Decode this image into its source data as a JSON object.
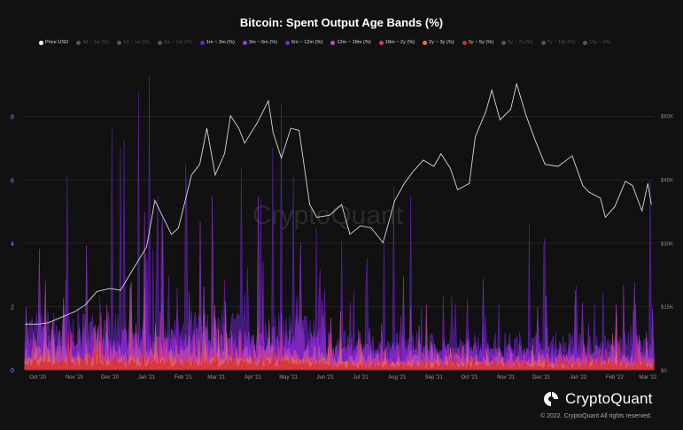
{
  "colors": {
    "background": "#111111",
    "price_line": "#d8d8d8",
    "grid": "#2e2e2e",
    "band_1m_3m": "#6b24c9",
    "band_3m_6m": "#9a3be0",
    "band_6m_12m": "#8b1fd6",
    "band_12m_18m": "#c24fae",
    "band_18m_2y": "#d8367a",
    "band_2y_3y": "#e96a55",
    "band_3y_5y": "#d42b2b"
  },
  "brand": {
    "name": "CryptoQuant",
    "logo_icon": "cryptoquant-logo-icon"
  },
  "copyright": "© 2022. CryptoQuant All rights reserved.",
  "watermark": "CryptoQuant",
  "chart_data": {
    "type": "area",
    "title": "Bitcoin: Spent Output Age Bands (%)",
    "legend_position": "top",
    "legend": [
      {
        "name": "Price USD",
        "active": true,
        "color": "#ffffff"
      },
      {
        "name": "3d ~ 1w (%)",
        "active": false,
        "color": "#555555"
      },
      {
        "name": "1d ~ 1w (%)",
        "active": false,
        "color": "#555555"
      },
      {
        "name": "1w ~ 1m (%)",
        "active": false,
        "color": "#555555"
      },
      {
        "name": "1m ~ 3m (%)",
        "active": true,
        "color": "#6b24c9"
      },
      {
        "name": "3m ~ 6m (%)",
        "active": true,
        "color": "#9a3be0"
      },
      {
        "name": "6m ~ 12m (%)",
        "active": true,
        "color": "#8b1fd6"
      },
      {
        "name": "12m ~ 18m (%)",
        "active": true,
        "color": "#c24fae"
      },
      {
        "name": "18m ~ 2y (%)",
        "active": true,
        "color": "#d8367a"
      },
      {
        "name": "2y ~ 3y (%)",
        "active": true,
        "color": "#e96a55"
      },
      {
        "name": "3y ~ 5y (%)",
        "active": true,
        "color": "#d42b2b"
      },
      {
        "name": "5y ~ 7y (%)",
        "active": false,
        "color": "#555555"
      },
      {
        "name": "7y ~ 10y (%)",
        "active": false,
        "color": "#555555"
      },
      {
        "name": "10y ~ (%)",
        "active": false,
        "color": "#555555"
      }
    ],
    "x_ticks": [
      "Oct '20",
      "Nov '20",
      "Dec '20",
      "Jan '21",
      "Feb '21",
      "Mar '21",
      "Apr '21",
      "May '21",
      "Jun '21",
      "Jul '21",
      "Aug '21",
      "Sep '21",
      "Oct '21",
      "Nov '21",
      "Dec '21",
      "Jan '22",
      "Feb '22",
      "Mar '22"
    ],
    "y_left": {
      "ticks": [
        "0",
        "2",
        "4",
        "6",
        "8"
      ],
      "ylim": [
        0,
        9.5
      ]
    },
    "y_right": {
      "ticks": [
        "$0",
        "$15K",
        "$30K",
        "$45K",
        "$60K"
      ],
      "ylim": [
        0,
        71000
      ]
    },
    "price_series": {
      "name": "Price USD",
      "x": [
        "2020-09-20",
        "2020-10-01",
        "2020-10-10",
        "2020-10-20",
        "2020-11-01",
        "2020-11-10",
        "2020-11-20",
        "2020-12-01",
        "2020-12-10",
        "2020-12-20",
        "2021-01-01",
        "2021-01-08",
        "2021-01-15",
        "2021-01-22",
        "2021-01-28",
        "2021-02-08",
        "2021-02-15",
        "2021-02-21",
        "2021-02-28",
        "2021-03-08",
        "2021-03-13",
        "2021-03-20",
        "2021-03-25",
        "2021-04-05",
        "2021-04-14",
        "2021-04-18",
        "2021-04-25",
        "2021-05-03",
        "2021-05-10",
        "2021-05-19",
        "2021-05-25",
        "2021-06-05",
        "2021-06-15",
        "2021-06-22",
        "2021-07-01",
        "2021-07-10",
        "2021-07-20",
        "2021-07-30",
        "2021-08-07",
        "2021-08-15",
        "2021-08-23",
        "2021-09-01",
        "2021-09-07",
        "2021-09-15",
        "2021-09-21",
        "2021-10-01",
        "2021-10-06",
        "2021-10-15",
        "2021-10-20",
        "2021-10-27",
        "2021-11-05",
        "2021-11-10",
        "2021-11-18",
        "2021-11-26",
        "2021-12-04",
        "2021-12-15",
        "2021-12-27",
        "2022-01-05",
        "2022-01-10",
        "2022-01-20",
        "2022-01-24",
        "2022-02-01",
        "2022-02-10",
        "2022-02-16",
        "2022-02-24",
        "2022-03-01",
        "2022-03-04"
      ],
      "values": [
        10800,
        10800,
        11100,
        12300,
        13700,
        15300,
        18500,
        19200,
        18800,
        23500,
        29000,
        40000,
        36000,
        32000,
        33500,
        46000,
        48500,
        57000,
        46000,
        51000,
        60000,
        57000,
        53500,
        58500,
        63500,
        56000,
        50000,
        57000,
        56500,
        39000,
        36000,
        36500,
        39000,
        32000,
        34000,
        33500,
        30000,
        40000,
        44000,
        47000,
        49500,
        48000,
        51000,
        47500,
        42500,
        44000,
        55000,
        61000,
        66000,
        59000,
        61500,
        67500,
        60000,
        54000,
        48500,
        48000,
        50500,
        43500,
        42000,
        40500,
        36000,
        38500,
        44500,
        43500,
        37500,
        44000,
        39000
      ]
    },
    "band_series": [
      {
        "name": "1m ~ 3m (%)",
        "baseline_mean": 0.85,
        "max": 9.3,
        "spikes": [
          [
            "2020-10-26",
            6.1
          ],
          [
            "2020-12-25",
            8.8
          ],
          [
            "2020-12-10",
            7.0
          ],
          [
            "2021-01-03",
            9.3
          ],
          [
            "2021-01-11",
            5.5
          ],
          [
            "2021-02-03",
            6.5
          ],
          [
            "2021-03-22",
            6.4
          ],
          [
            "2021-04-18",
            7.0
          ],
          [
            "2021-04-25",
            8.4
          ],
          [
            "2021-06-15",
            4.1
          ],
          [
            "2021-07-29",
            5.8
          ],
          [
            "2021-08-12",
            5.5
          ],
          [
            "2021-09-19",
            2.1
          ],
          [
            "2021-10-13",
            2.9
          ],
          [
            "2021-11-21",
            4.6
          ],
          [
            "2022-01-15",
            2.1
          ],
          [
            "2022-03-03",
            6.0
          ]
        ]
      },
      {
        "name": "3m ~ 6m (%)",
        "baseline_mean": 0.6,
        "max": 5.5
      },
      {
        "name": "6m ~ 12m (%)",
        "baseline_mean": 0.5,
        "max": 4.6
      },
      {
        "name": "12m ~ 18m (%)",
        "baseline_mean": 0.35,
        "max": 2.8
      },
      {
        "name": "18m ~ 2y (%)",
        "baseline_mean": 0.25,
        "max": 1.8
      },
      {
        "name": "2y ~ 3y (%)",
        "baseline_mean": 0.2,
        "max": 1.5
      },
      {
        "name": "3y ~ 5y (%)",
        "baseline_mean": 0.15,
        "max": 1.2
      }
    ]
  }
}
